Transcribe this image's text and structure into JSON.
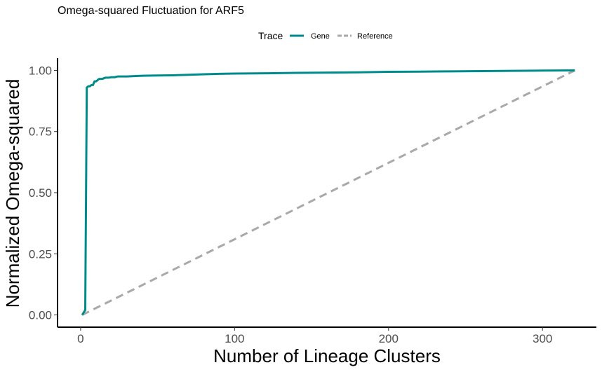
{
  "chart_data": {
    "type": "line",
    "title": "Omega-squared Fluctuation for ARF5",
    "xlabel": "Number of Lineage Clusters",
    "ylabel": "Normalized Omega-squared",
    "xlim": [
      -15,
      335
    ],
    "ylim": [
      -0.05,
      1.05
    ],
    "xticks": [
      0,
      100,
      200,
      300
    ],
    "xtick_labels": [
      "0",
      "100",
      "200",
      "300"
    ],
    "yticks": [
      0.0,
      0.25,
      0.5,
      0.75,
      1.0
    ],
    "ytick_labels": [
      "0.00",
      "0.25",
      "0.50",
      "0.75",
      "1.00"
    ],
    "grid": false,
    "legend": {
      "title": "Trace",
      "position": "top",
      "entries": [
        {
          "label": "Gene",
          "color": "#008b8b",
          "dash": "solid"
        },
        {
          "label": "Reference",
          "color": "#a9a9a9",
          "dash": "dashed"
        }
      ]
    },
    "series": [
      {
        "name": "Gene",
        "color": "#008b8b",
        "style": "solid",
        "x": [
          1,
          3,
          4,
          5,
          6,
          7,
          8,
          9,
          10,
          11,
          12,
          14,
          16,
          18,
          20,
          22,
          24,
          30,
          40,
          50,
          60,
          70,
          80,
          90,
          100,
          120,
          140,
          160,
          180,
          200,
          220,
          240,
          260,
          280,
          300,
          321
        ],
        "y": [
          0.0,
          0.02,
          0.93,
          0.935,
          0.935,
          0.94,
          0.94,
          0.955,
          0.955,
          0.96,
          0.965,
          0.965,
          0.97,
          0.97,
          0.972,
          0.972,
          0.975,
          0.975,
          0.978,
          0.979,
          0.98,
          0.982,
          0.984,
          0.986,
          0.987,
          0.988,
          0.99,
          0.991,
          0.992,
          0.994,
          0.995,
          0.996,
          0.997,
          0.998,
          0.999,
          1.0
        ]
      },
      {
        "name": "Reference",
        "color": "#a9a9a9",
        "style": "dashed",
        "x": [
          1,
          321
        ],
        "y": [
          0.0,
          1.0
        ]
      }
    ]
  }
}
